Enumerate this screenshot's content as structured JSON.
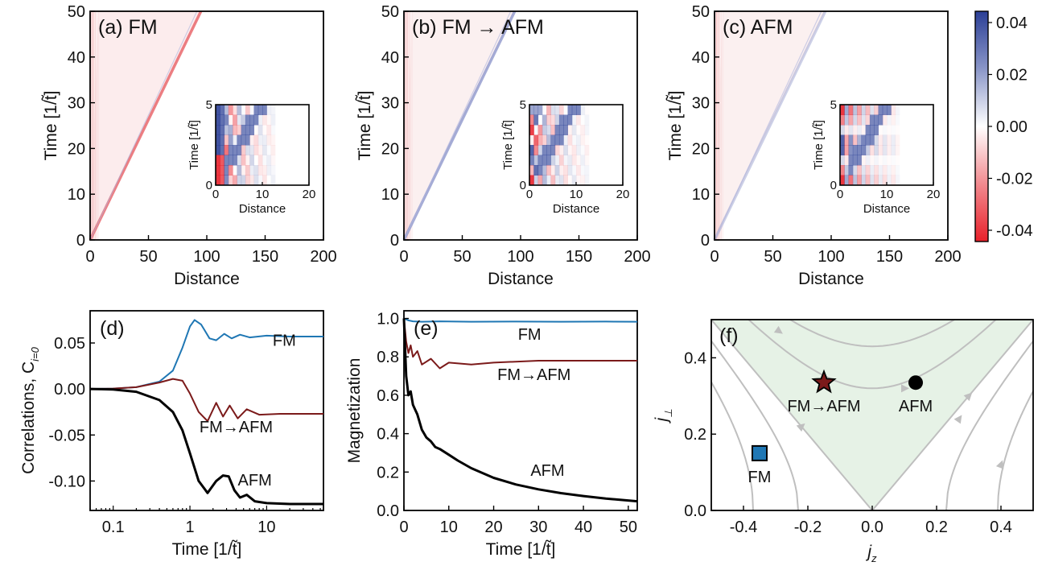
{
  "chart_data": [
    {
      "type": "heatmap",
      "panel": "a",
      "title": "(a) FM",
      "xlabel": "Distance",
      "ylabel": "Time [1/t̃]",
      "xlim": [
        0,
        200
      ],
      "ylim": [
        0,
        50
      ],
      "xticks": [
        "0",
        "50",
        "100",
        "150",
        "200"
      ],
      "yticks": [
        "0",
        "10",
        "20",
        "30",
        "40",
        "50"
      ],
      "light_cone_sign": "negative",
      "light_cone_end_x": 95,
      "inset": {
        "xlabel": "Distance",
        "ylabel": "Time [1/t̃]",
        "xticks": [
          "0",
          "10",
          "20"
        ],
        "yticks": [
          "0",
          "5"
        ]
      }
    },
    {
      "type": "heatmap",
      "panel": "b",
      "title": "(b) FM → AFM",
      "xlabel": "Distance",
      "ylabel": "Time [1/t̃]",
      "xlim": [
        0,
        200
      ],
      "ylim": [
        0,
        50
      ],
      "xticks": [
        "0",
        "50",
        "100",
        "150",
        "200"
      ],
      "yticks": [
        "0",
        "10",
        "20",
        "30",
        "40",
        "50"
      ],
      "light_cone_sign": "positive",
      "light_cone_end_x": 95,
      "inset": {
        "xlabel": "Distance",
        "ylabel": "Time [1/t̃]",
        "xticks": [
          "0",
          "10",
          "20"
        ],
        "yticks": [
          "0",
          "5"
        ]
      }
    },
    {
      "type": "heatmap",
      "panel": "c",
      "title": "(c) AFM",
      "xlabel": "Distance",
      "ylabel": "Time [1/t̃]",
      "xlim": [
        0,
        200
      ],
      "ylim": [
        0,
        50
      ],
      "xticks": [
        "0",
        "50",
        "100",
        "150",
        "200"
      ],
      "yticks": [
        "0",
        "10",
        "20",
        "30",
        "40",
        "50"
      ],
      "light_cone_sign": "positive-weak",
      "light_cone_end_x": 95,
      "inset": {
        "xlabel": "Distance",
        "ylabel": "Time [1/t̃]",
        "xticks": [
          "0",
          "10",
          "20"
        ],
        "yticks": [
          "0",
          "5"
        ]
      },
      "colorbar": {
        "ticks": [
          "0.04",
          "0.02",
          "0.00",
          "-0.02",
          "-0.04"
        ],
        "range": [
          -0.04,
          0.04
        ],
        "colors": {
          "positive": "#2b3f96",
          "zero": "#ffffff",
          "negative": "#e8202a"
        }
      }
    },
    {
      "type": "line",
      "panel": "d",
      "title": "(d)",
      "xlabel": "Time [1/t̃]",
      "ylabel": "Correlations, C",
      "ylabel_sub": "i=0",
      "xscale": "log",
      "xlim": [
        0.05,
        55
      ],
      "ylim": [
        -0.132,
        0.085
      ],
      "xticks": [
        "0.1",
        "1",
        "10"
      ],
      "yticks": [
        "0.05",
        "0.00",
        "-0.05",
        "-0.10"
      ],
      "series": [
        {
          "name": "FM",
          "color": "#1f77b4",
          "x": [
            0.05,
            0.1,
            0.2,
            0.4,
            0.6,
            0.8,
            1.0,
            1.15,
            1.4,
            1.8,
            2.2,
            2.8,
            3.5,
            4.5,
            6,
            10,
            20,
            55
          ],
          "y": [
            0.0,
            0.0005,
            0.002,
            0.008,
            0.02,
            0.045,
            0.068,
            0.075,
            0.07,
            0.055,
            0.053,
            0.06,
            0.055,
            0.059,
            0.056,
            0.058,
            0.057,
            0.057
          ]
        },
        {
          "name": "FM→AFM",
          "color": "#7b1a1a",
          "x": [
            0.05,
            0.1,
            0.2,
            0.4,
            0.6,
            0.8,
            1.0,
            1.3,
            1.7,
            2.2,
            2.7,
            3.3,
            4.2,
            5.5,
            8,
            15,
            55
          ],
          "y": [
            0.0,
            0.0005,
            0.002,
            0.007,
            0.011,
            0.009,
            -0.005,
            -0.025,
            -0.035,
            -0.015,
            -0.03,
            -0.018,
            -0.032,
            -0.022,
            -0.028,
            -0.027,
            -0.027
          ]
        },
        {
          "name": "AFM",
          "color": "#000000",
          "x": [
            0.05,
            0.1,
            0.2,
            0.4,
            0.6,
            0.8,
            1.0,
            1.3,
            1.7,
            2.2,
            2.7,
            3.2,
            3.8,
            4.5,
            5.5,
            7,
            10,
            20,
            55
          ],
          "y": [
            0.0,
            -0.0005,
            -0.003,
            -0.012,
            -0.025,
            -0.045,
            -0.07,
            -0.1,
            -0.113,
            -0.1,
            -0.094,
            -0.095,
            -0.11,
            -0.118,
            -0.115,
            -0.122,
            -0.124,
            -0.125,
            -0.125
          ]
        }
      ]
    },
    {
      "type": "line",
      "panel": "e",
      "title": "(e)",
      "xlabel": "Time [1/t̃]",
      "ylabel": "Magnetization",
      "xlim": [
        0,
        52
      ],
      "ylim": [
        0,
        1.04
      ],
      "xticks": [
        "0",
        "10",
        "20",
        "30",
        "40",
        "50"
      ],
      "yticks": [
        "0.0",
        "0.2",
        "0.4",
        "0.6",
        "0.8",
        "1.0"
      ],
      "series": [
        {
          "name": "FM",
          "color": "#1f77b4",
          "x": [
            0,
            1,
            2,
            4,
            8,
            15,
            25,
            35,
            45,
            52
          ],
          "y": [
            1.0,
            0.99,
            0.985,
            0.983,
            0.985,
            0.983,
            0.984,
            0.983,
            0.984,
            0.983
          ]
        },
        {
          "name": "FM→AFM",
          "color": "#7b1a1a",
          "x": [
            0,
            0.5,
            1,
            1.5,
            2,
            3,
            4,
            6,
            8,
            10,
            15,
            20,
            30,
            40,
            52
          ],
          "y": [
            1.0,
            0.88,
            0.82,
            0.86,
            0.8,
            0.83,
            0.76,
            0.79,
            0.74,
            0.77,
            0.76,
            0.77,
            0.78,
            0.78,
            0.78
          ]
        },
        {
          "name": "AFM",
          "color": "#000000",
          "x": [
            0,
            0.5,
            1,
            1.5,
            2,
            3,
            4,
            5,
            6,
            7,
            8,
            10,
            12,
            15,
            20,
            25,
            30,
            35,
            40,
            45,
            52
          ],
          "y": [
            1.0,
            0.7,
            0.6,
            0.62,
            0.55,
            0.5,
            0.42,
            0.38,
            0.36,
            0.33,
            0.32,
            0.29,
            0.26,
            0.22,
            0.17,
            0.135,
            0.11,
            0.09,
            0.075,
            0.062,
            0.048
          ]
        }
      ]
    },
    {
      "type": "scatter",
      "panel": "f",
      "title": "(f)",
      "xlabel": "j",
      "xlabel_sub": "z",
      "ylabel": "j",
      "ylabel_sub": "⊥",
      "xlim": [
        -0.5,
        0.5
      ],
      "ylim": [
        0,
        0.5
      ],
      "xticks": [
        "-0.4",
        "-0.2",
        "0.0",
        "0.2",
        "0.4"
      ],
      "yticks": [
        "0.0",
        "0.2",
        "0.4"
      ],
      "region_color": "#e6f2e6",
      "flow_color": "#bfbfbf",
      "points": [
        {
          "label": "FM",
          "x": -0.35,
          "y": 0.15,
          "marker": "square",
          "color": "#1f77b4"
        },
        {
          "label": "FM→AFM",
          "x": -0.15,
          "y": 0.335,
          "marker": "star",
          "color": "#7b1a1a"
        },
        {
          "label": "AFM",
          "x": 0.135,
          "y": 0.335,
          "marker": "circle",
          "color": "#000000"
        }
      ]
    }
  ]
}
